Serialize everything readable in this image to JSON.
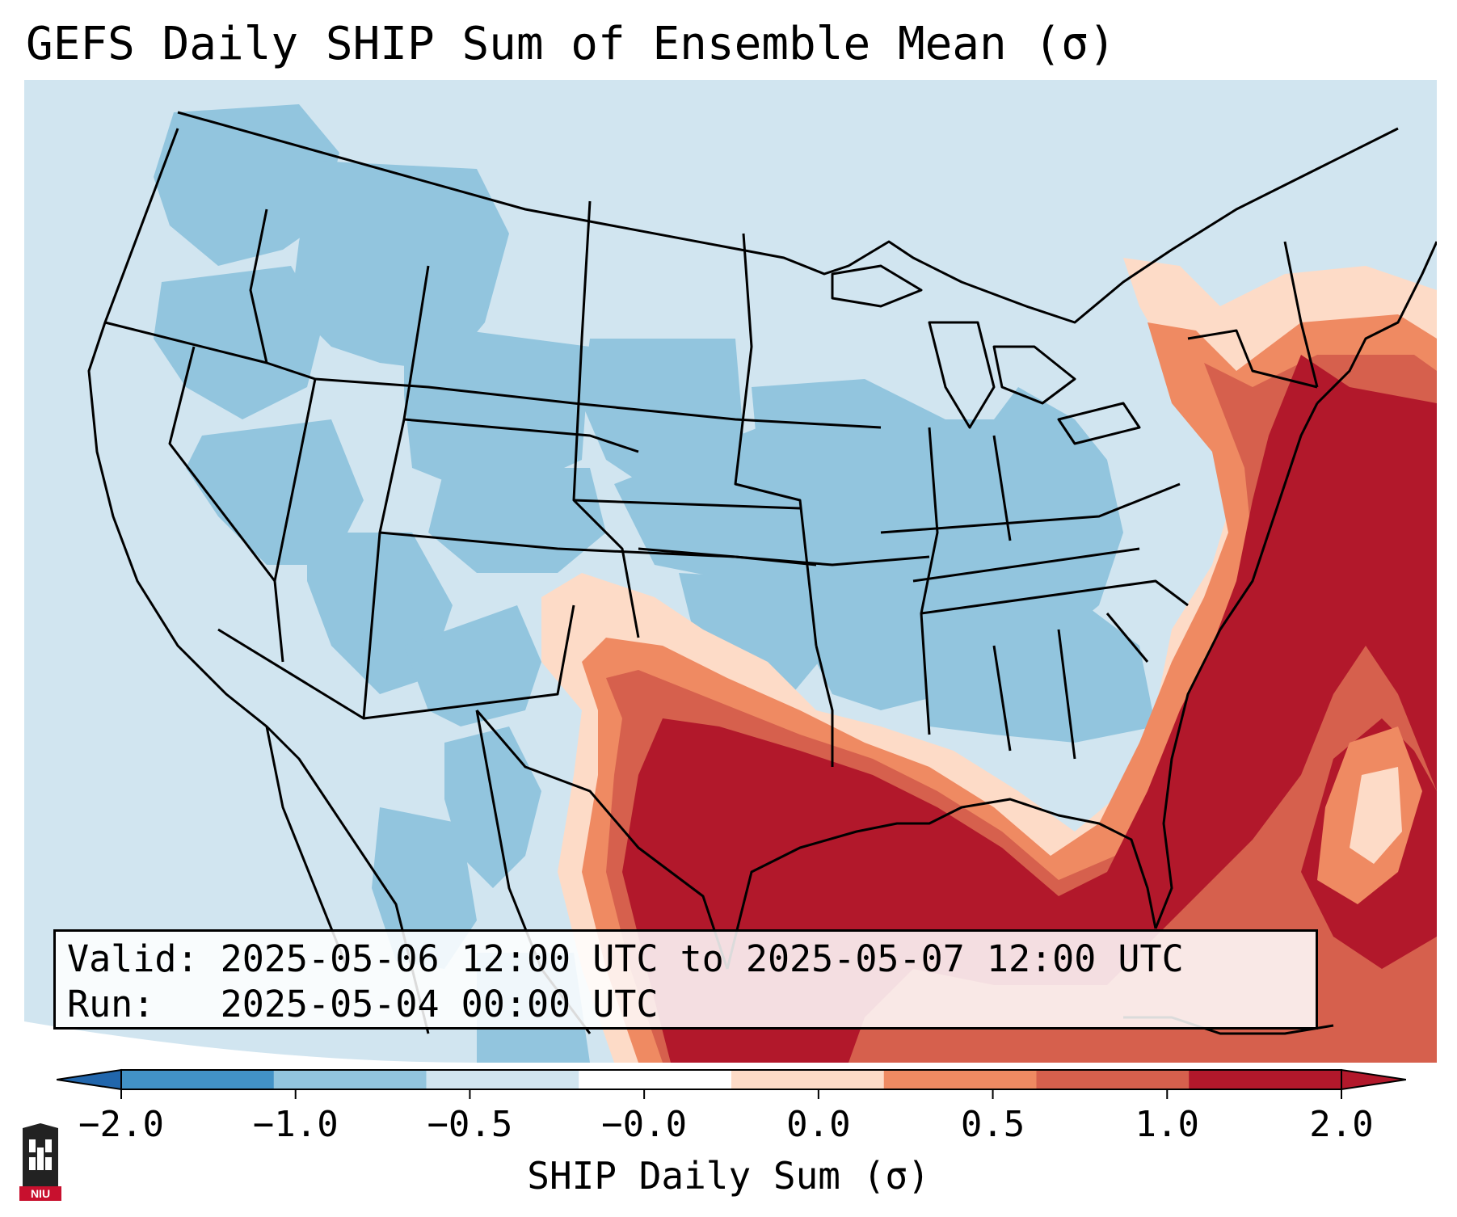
{
  "title": "GEFS Daily SHIP Sum of Ensemble Mean (σ)",
  "info": {
    "valid_line": "Valid: 2025-05-06 12:00 UTC to 2025-05-07 12:00 UTC",
    "run_line": "Run:   2025-05-04 00:00 UTC"
  },
  "colorbar": {
    "label": "SHIP Daily Sum (σ)",
    "ticks": [
      "−2.0",
      "−1.0",
      "−0.5",
      "−0.0",
      "0.0",
      "0.5",
      "1.0",
      "2.0"
    ],
    "colors": [
      "#4292c6",
      "#92c5de",
      "#d1e5f0",
      "#ffffff",
      "#fddbc7",
      "#ef8a62",
      "#d6604d",
      "#b2182b"
    ],
    "extend_low_color": "#2166ac",
    "extend_high_color": "#b2182b"
  },
  "map": {
    "region": "Contiguous United States",
    "ocean_color": "#d1e5f0",
    "land_low_color": "#92c5de",
    "high_color": "#b2182b"
  },
  "logo": {
    "text": "NIU",
    "icon": "niu-tower-icon"
  }
}
